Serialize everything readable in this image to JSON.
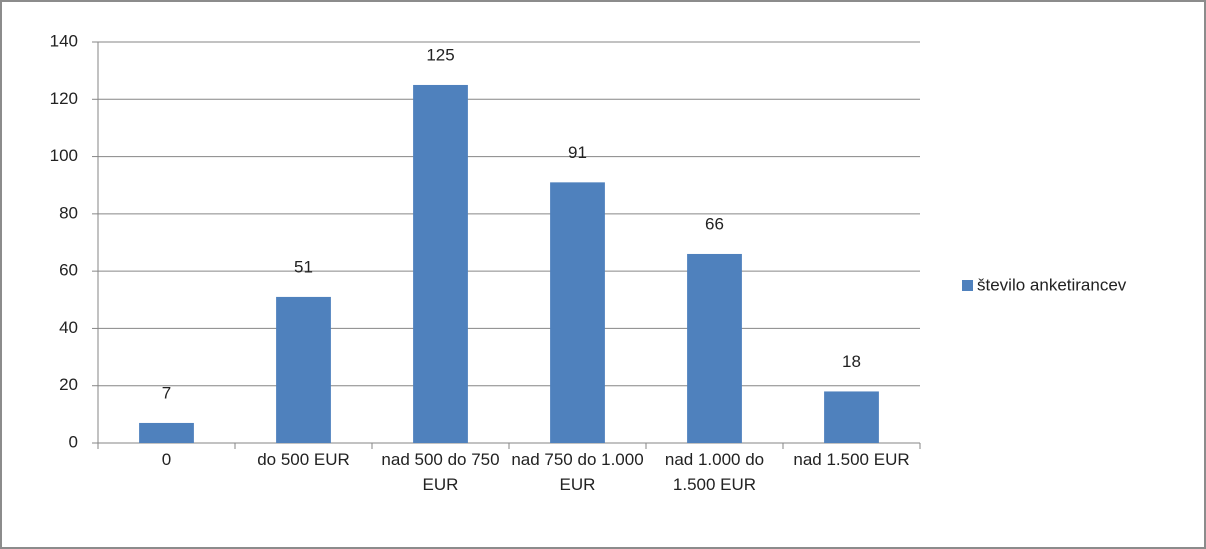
{
  "chart_data": {
    "type": "bar",
    "categories": [
      "0",
      "do 500 EUR",
      "nad 500 do 750 EUR",
      "nad 750 do 1.000 EUR",
      "nad 1.000 do 1.500 EUR",
      "nad 1.500 EUR"
    ],
    "series": [
      {
        "name": "število anketirancev",
        "color": "#4f81bd",
        "values": [
          7,
          51,
          125,
          91,
          66,
          18
        ]
      }
    ],
    "ylim": [
      0,
      140
    ],
    "yticks": [
      0,
      20,
      40,
      60,
      80,
      100,
      120,
      140
    ],
    "grid": true,
    "legend": "right"
  }
}
